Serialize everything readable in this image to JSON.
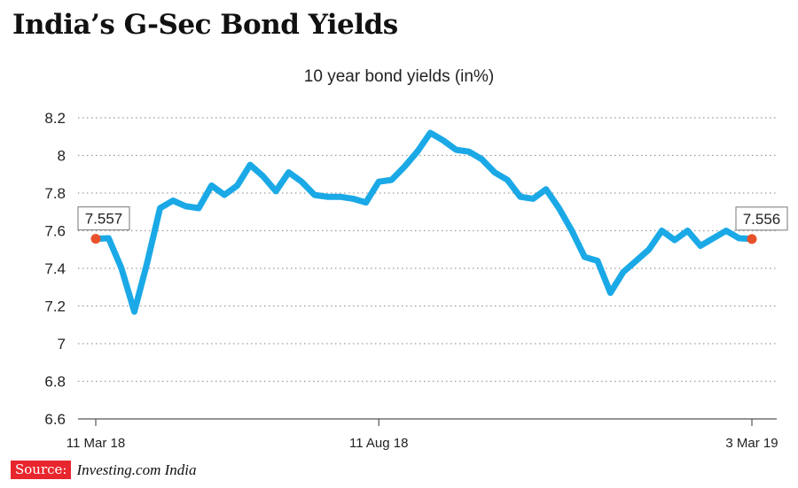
{
  "header": {
    "title": "India’s G-Sec Bond Yields"
  },
  "footer": {
    "source_label": "Source:",
    "source_text": "Investing.com India"
  },
  "colors": {
    "line": "#1aa9e6",
    "marker": "#e8522a",
    "grid": "#9a9a9a",
    "source_badge": "#e8262d"
  },
  "chart_data": {
    "type": "line",
    "title": "10 year bond yields (in%)",
    "xlabel": "",
    "ylabel": "",
    "ylim": [
      6.6,
      8.2
    ],
    "yticks": [
      "6.6",
      "6.8",
      "7",
      "7.2",
      "7.4",
      "7.6",
      "7.8",
      "8",
      "8.2"
    ],
    "xticks": [
      {
        "label": "11 Mar 18",
        "index": 0
      },
      {
        "label": "11 Aug 18",
        "index": 22
      },
      {
        "label": "3 Mar 19",
        "index": 51
      }
    ],
    "grid": "horizontal-dotted",
    "series": [
      {
        "name": "",
        "values": [
          7.557,
          7.56,
          7.4,
          7.17,
          7.43,
          7.72,
          7.76,
          7.73,
          7.72,
          7.84,
          7.79,
          7.84,
          7.95,
          7.89,
          7.81,
          7.91,
          7.86,
          7.79,
          7.78,
          7.78,
          7.77,
          7.75,
          7.86,
          7.87,
          7.94,
          8.02,
          8.12,
          8.08,
          8.03,
          8.02,
          7.98,
          7.91,
          7.87,
          7.78,
          7.77,
          7.82,
          7.72,
          7.6,
          7.46,
          7.44,
          7.27,
          7.38,
          7.44,
          7.5,
          7.6,
          7.55,
          7.6,
          7.52,
          7.56,
          7.6,
          7.56,
          7.556
        ]
      }
    ],
    "annotations": [
      {
        "label": "7.557",
        "index": 0,
        "value": 7.557
      },
      {
        "label": "7.556",
        "index": 51,
        "value": 7.556
      }
    ]
  }
}
